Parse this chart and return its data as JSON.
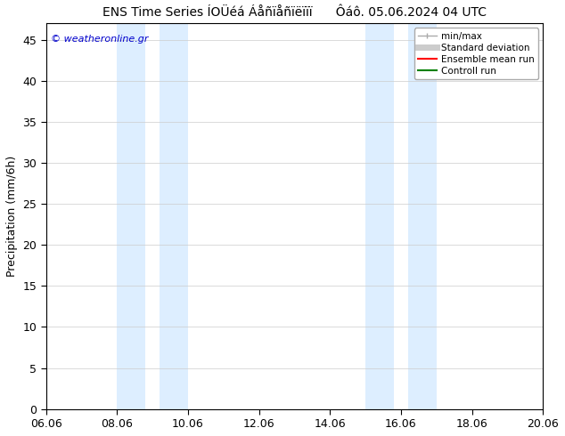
{
  "title": "ENS Time Series ÍOÜéá Áåñïåñïëïïï      Ôáô. 05.06.2024 04 UTC",
  "ylabel": "Precipitation (mm/6h)",
  "ylim": [
    0,
    47
  ],
  "yticks": [
    0,
    5,
    10,
    15,
    20,
    25,
    30,
    35,
    40,
    45
  ],
  "xticklabels": [
    "06.06",
    "08.06",
    "10.06",
    "12.06",
    "14.06",
    "16.06",
    "18.06",
    "20.06"
  ],
  "xtick_positions": [
    0,
    2,
    4,
    6,
    8,
    10,
    12,
    14
  ],
  "shade_regions": [
    {
      "start": 2,
      "end": 2.8
    },
    {
      "start": 3.2,
      "end": 4
    },
    {
      "start": 9,
      "end": 9.8
    },
    {
      "start": 10.2,
      "end": 11
    }
  ],
  "shade_color": "#ddeeff",
  "watermark": "© weatheronline.gr",
  "watermark_color": "#0000cc",
  "bg_color": "#ffffff",
  "grid_color": "#cccccc",
  "title_fontsize": 10,
  "tick_fontsize": 9,
  "ylabel_fontsize": 9,
  "x_start": 0,
  "x_end": 14,
  "legend_labels": [
    "min/max",
    "Standard deviation",
    "Ensemble mean run",
    "Controll run"
  ],
  "legend_colors": [
    "#aaaaaa",
    "#cccccc",
    "#ff0000",
    "#008000"
  ],
  "legend_lws": [
    1.0,
    5,
    1.5,
    1.5
  ]
}
